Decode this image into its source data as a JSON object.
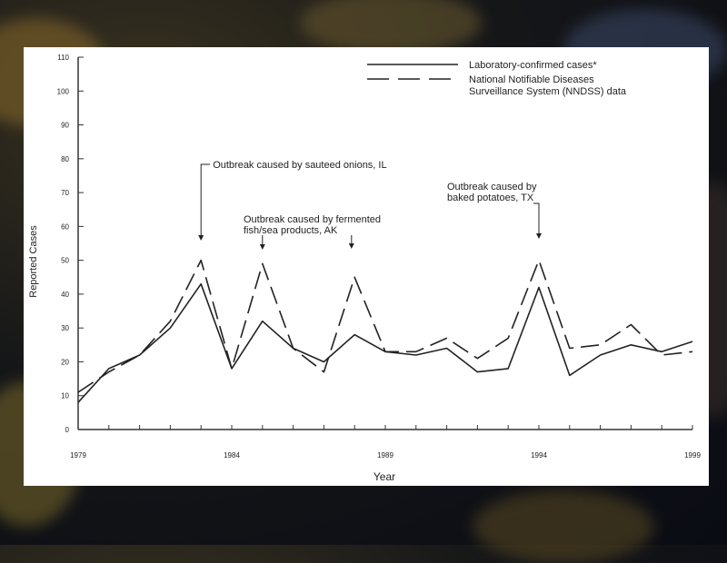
{
  "chart_data": {
    "type": "line",
    "xlabel": "Year",
    "ylabel": "Reported Cases",
    "xlim": [
      1979,
      1999
    ],
    "ylim": [
      0,
      110
    ],
    "x_ticks": [
      1979,
      1984,
      1989,
      1994,
      1999
    ],
    "y_ticks": [
      0,
      10,
      20,
      30,
      40,
      50,
      60,
      70,
      80,
      90,
      100,
      110
    ],
    "x": [
      1979,
      1980,
      1981,
      1982,
      1983,
      1984,
      1985,
      1986,
      1987,
      1988,
      1989,
      1990,
      1991,
      1992,
      1993,
      1994,
      1995,
      1996,
      1997,
      1998,
      1999
    ],
    "series": [
      {
        "name": "Laboratory-confirmed cases*",
        "style": "solid",
        "values": [
          8,
          18,
          22,
          30,
          43,
          18,
          32,
          24,
          20,
          28,
          23,
          22,
          24,
          17,
          18,
          42,
          16,
          22,
          25,
          23,
          26
        ]
      },
      {
        "name": "National Notifiable Diseases Surveillance System (NNDSS) data",
        "style": "dashed",
        "values": [
          11,
          17,
          22,
          32,
          50,
          18,
          49,
          24,
          17,
          45,
          23,
          23,
          27,
          21,
          27,
          50,
          24,
          25,
          31,
          22,
          23
        ]
      }
    ],
    "legend": {
      "position": "top-right",
      "entries": [
        [
          "Laboratory-confirmed cases*"
        ],
        [
          "National Notifiable Diseases",
          "Surveillance System (NNDSS) data"
        ]
      ]
    },
    "annotations": [
      {
        "lines": [
          "Outbreak caused by sauteed onions, IL"
        ],
        "x": 1983,
        "y": 50
      },
      {
        "lines": [
          "Outbreak caused by fermented",
          "fish/sea products, AK"
        ],
        "x": 1985,
        "y": 49
      },
      {
        "lines": [
          "Outbreak caused by fermented",
          "fish/sea products, AK"
        ],
        "x": 1987.9,
        "y": 45
      },
      {
        "lines": [
          "Outbreak caused by",
          "baked potatoes, TX"
        ],
        "x": 1994,
        "y": 50
      }
    ],
    "grid": false
  }
}
